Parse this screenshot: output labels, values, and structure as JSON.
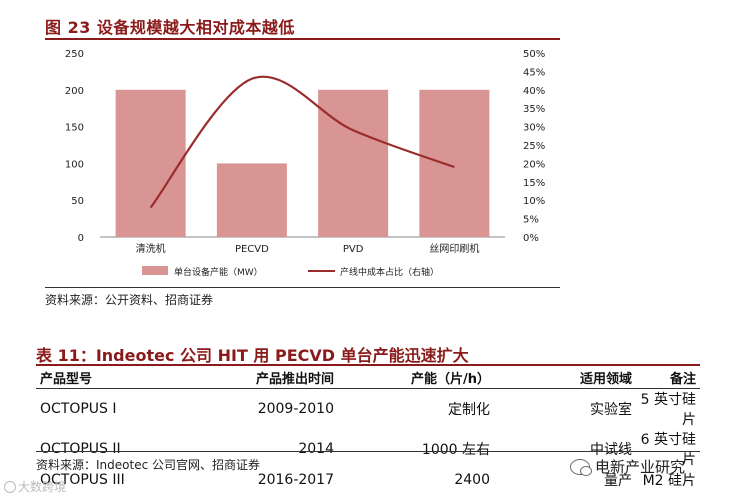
{
  "figure": {
    "title": "图 23  设备规模越大相对成本越低",
    "source": "资料来源：公开资料、招商证券"
  },
  "chart_data": {
    "type": "bar",
    "categories": [
      "清洗机",
      "PECVD",
      "PVD",
      "丝网印刷机"
    ],
    "y_left": {
      "ticks": [
        "0",
        "50",
        "100",
        "150",
        "200",
        "250"
      ],
      "ylim": [
        0,
        250
      ]
    },
    "y_right": {
      "ticks": [
        "0%",
        "5%",
        "10%",
        "15%",
        "20%",
        "25%",
        "30%",
        "35%",
        "40%",
        "45%",
        "50%"
      ],
      "ylim": [
        0,
        50
      ]
    },
    "series": [
      {
        "name": "单台设备产能（MW）",
        "type": "bar",
        "axis": "left",
        "values": [
          200,
          100,
          200,
          200
        ],
        "color": "#d99594"
      },
      {
        "name": "产线中成本占比（右轴）",
        "type": "line",
        "axis": "right",
        "values": [
          8,
          43,
          29,
          19
        ],
        "color": "#9b2c2c"
      }
    ],
    "legend_position": "bottom",
    "grid": false
  },
  "table": {
    "title": "表 11：Indeotec 公司 HIT 用 PECVD 单台产能迅速扩大",
    "headers": [
      "产品型号",
      "产品推出时间",
      "产能（片/h）",
      "适用领域",
      "备注"
    ],
    "rows": [
      [
        "OCTOPUS I",
        "2009-2010",
        "定制化",
        "实验室",
        "5 英寸硅片"
      ],
      [
        "OCTOPUS II",
        "2014",
        "1000 左右",
        "中试线",
        "6 英寸硅片"
      ],
      [
        "OCTOPUS III",
        "2016-2017",
        "2400",
        "量产",
        "M2 硅片"
      ]
    ],
    "source": "资料来源：Indeotec 公司官网、招商证券"
  },
  "watermarks": {
    "left": "大数跨境",
    "right": "电新产业研究"
  }
}
